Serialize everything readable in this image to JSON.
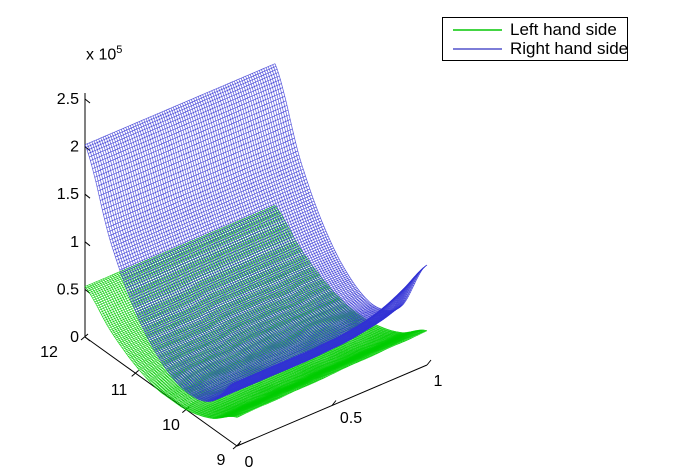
{
  "chart": {
    "z_exponent_label": {
      "base": "x 10",
      "exp": "5"
    },
    "axes": {
      "z": {
        "ticks": [
          {
            "label": "0",
            "v": 0
          },
          {
            "label": "0.5",
            "v": 0.5
          },
          {
            "label": "1",
            "v": 1
          },
          {
            "label": "1.5",
            "v": 1.5
          },
          {
            "label": "2",
            "v": 2
          },
          {
            "label": "2.5",
            "v": 2.5
          }
        ]
      },
      "y": {
        "ticks": [
          {
            "label": "9",
            "v": 9
          },
          {
            "label": "10",
            "v": 10
          },
          {
            "label": "11",
            "v": 11
          },
          {
            "label": "12",
            "v": 12
          }
        ]
      },
      "x": {
        "ticks": [
          {
            "label": "0",
            "v": 0
          },
          {
            "label": "0.5",
            "v": 0.5
          },
          {
            "label": "1",
            "v": 1
          }
        ]
      }
    },
    "legend": {
      "items": [
        {
          "label": "Left hand side",
          "color": "#44D544"
        },
        {
          "label": "Right hand side",
          "color": "#7D7DD8"
        }
      ]
    }
  },
  "chart_data": {
    "type": "surface",
    "title": "",
    "x_range": [
      0,
      1
    ],
    "y_range": [
      9,
      12
    ],
    "z_range": [
      0,
      250000
    ],
    "z_scale": 100000,
    "z_axis_exponent": "x 10^5",
    "x": [
      0,
      0.1,
      0.2,
      0.3,
      0.4,
      0.5,
      0.6,
      0.7,
      0.8,
      0.9,
      1
    ],
    "y": [
      9,
      9.5,
      10,
      10.5,
      11,
      11.5,
      12
    ],
    "series": [
      {
        "name": "Left hand side",
        "line_color": "#00CC00",
        "z": [
          [
            0.3,
            0.31,
            0.31,
            0.32,
            0.32,
            0.33,
            0.34,
            0.34,
            0.35,
            0.35,
            0.36
          ],
          [
            0.1,
            0.11,
            0.11,
            0.12,
            0.12,
            0.13,
            0.13,
            0.14,
            0.14,
            0.15,
            0.15
          ],
          [
            0.0,
            0.0,
            0.01,
            0.01,
            0.02,
            0.02,
            0.02,
            0.03,
            0.03,
            0.04,
            0.04
          ],
          [
            -0.01,
            -0.01,
            0.0,
            0.0,
            0.0,
            0.01,
            0.01,
            0.01,
            0.02,
            0.02,
            0.02
          ],
          [
            0.08,
            0.08,
            0.08,
            0.08,
            0.08,
            0.09,
            0.09,
            0.09,
            0.09,
            0.1,
            0.1
          ],
          [
            0.26,
            0.26,
            0.26,
            0.26,
            0.26,
            0.27,
            0.27,
            0.27,
            0.27,
            0.27,
            0.27
          ],
          [
            0.53,
            0.53,
            0.53,
            0.53,
            0.53,
            0.53,
            0.53,
            0.53,
            0.53,
            0.53,
            0.53
          ]
        ]
      },
      {
        "name": "Right hand side",
        "line_color": "#3232D4",
        "z": [
          [
            0.67,
            0.67,
            0.67,
            0.67,
            0.67,
            0.68,
            0.7,
            0.74,
            0.81,
            0.92,
            1.05
          ],
          [
            0.28,
            0.28,
            0.28,
            0.28,
            0.28,
            0.28,
            0.29,
            0.3,
            0.33,
            0.37,
            0.43
          ],
          [
            0.19,
            0.19,
            0.19,
            0.19,
            0.2,
            0.2,
            0.2,
            0.2,
            0.21,
            0.22,
            0.23
          ],
          [
            0.32,
            0.32,
            0.32,
            0.32,
            0.32,
            0.32,
            0.32,
            0.33,
            0.33,
            0.33,
            0.33
          ],
          [
            0.65,
            0.65,
            0.65,
            0.65,
            0.65,
            0.65,
            0.65,
            0.65,
            0.65,
            0.65,
            0.65
          ],
          [
            1.2,
            1.2,
            1.2,
            1.2,
            1.2,
            1.2,
            1.2,
            1.2,
            1.2,
            1.2,
            1.2
          ],
          [
            2.02,
            2.02,
            2.02,
            2.02,
            2.02,
            2.02,
            2.02,
            2.02,
            2.02,
            2.02,
            2.02
          ]
        ]
      }
    ]
  }
}
